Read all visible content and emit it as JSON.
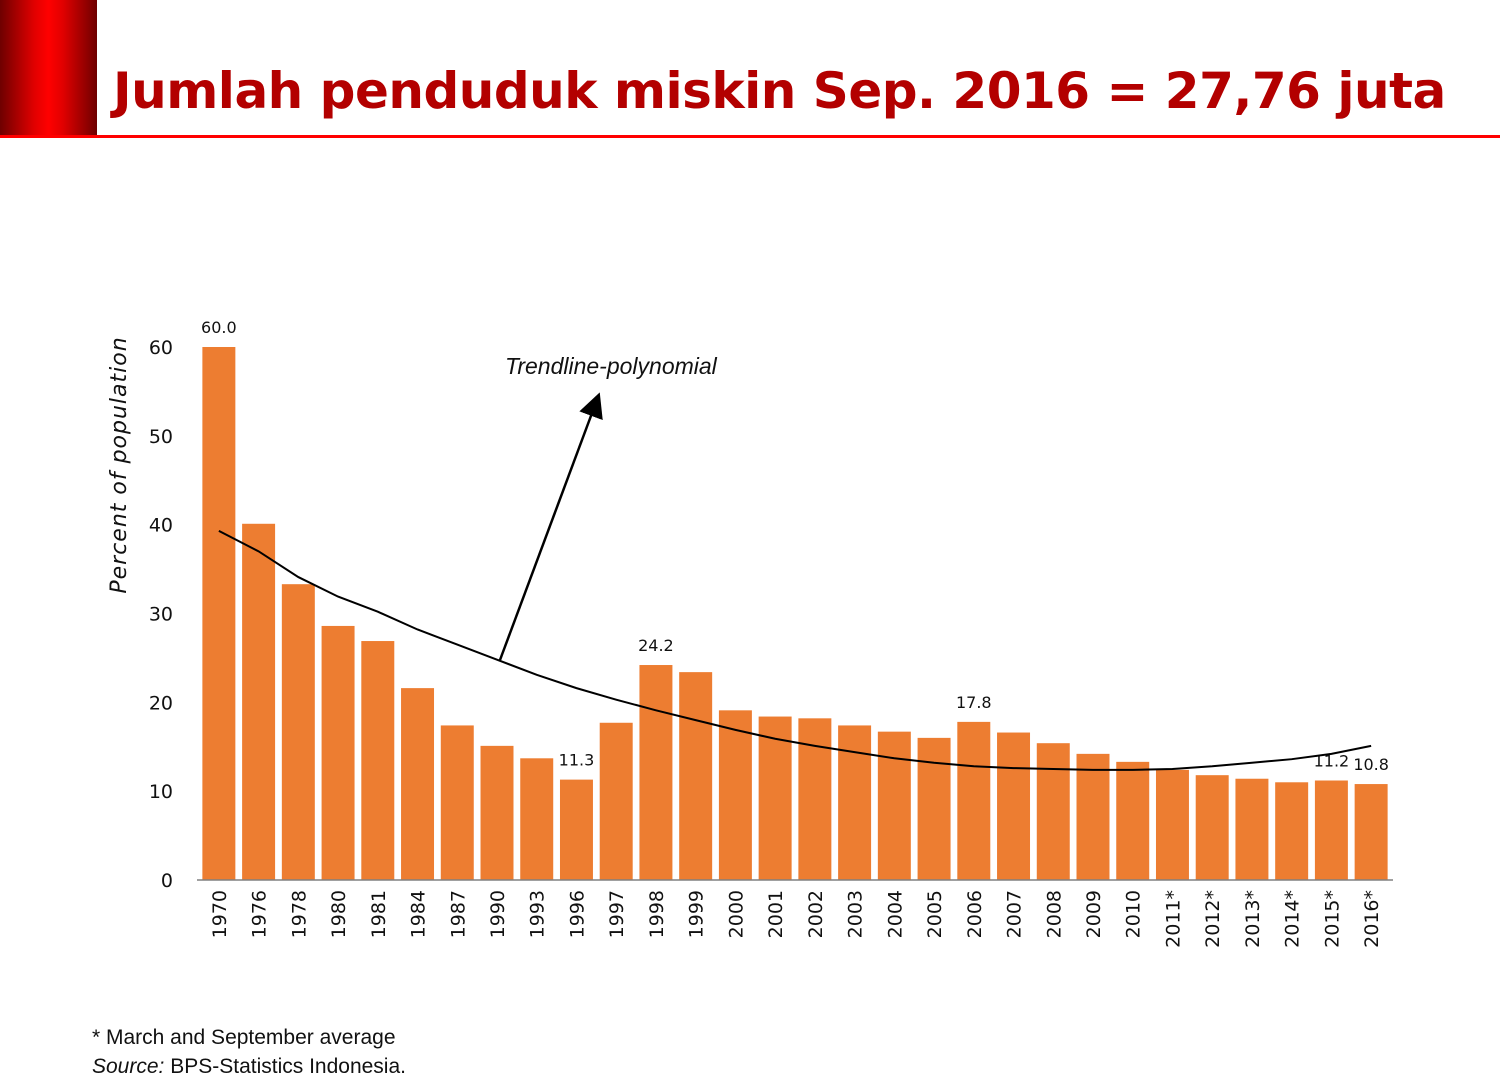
{
  "header": {
    "title": "Jumlah penduduk miskin Sep. 2016 = 27,76 juta"
  },
  "colors": {
    "bar": "#ed7d31",
    "trend": "#000000",
    "title": "#b30000",
    "accent": "#ff0000"
  },
  "chart_data": {
    "type": "bar",
    "title": "",
    "xlabel": "",
    "ylabel": "Percent of population",
    "ylim": [
      0,
      60
    ],
    "yticks": [
      0,
      10,
      20,
      30,
      40,
      50,
      60
    ],
    "grid": false,
    "categories": [
      "1970",
      "1976",
      "1978",
      "1980",
      "1981",
      "1984",
      "1987",
      "1990",
      "1993",
      "1996",
      "1997",
      "1998",
      "1999",
      "2000",
      "2001",
      "2002",
      "2003",
      "2004",
      "2005",
      "2006",
      "2007",
      "2008",
      "2009",
      "2010",
      "2011*",
      "2012*",
      "2013*",
      "2014*",
      "2015*",
      "2016*"
    ],
    "values": [
      60.0,
      40.1,
      33.3,
      28.6,
      26.9,
      21.6,
      17.4,
      15.1,
      13.7,
      11.3,
      17.7,
      24.2,
      23.4,
      19.1,
      18.4,
      18.2,
      17.4,
      16.7,
      16.0,
      17.8,
      16.6,
      15.4,
      14.2,
      13.3,
      12.4,
      11.8,
      11.4,
      11.0,
      11.2,
      10.8
    ],
    "data_labels": {
      "1970": "60.0",
      "1996": "11.3",
      "1998": "24.2",
      "2006": "17.8",
      "2015*": "11.2",
      "2016*": "10.8"
    },
    "trendline": {
      "type": "polynomial",
      "values": [
        39.3,
        37.0,
        34.1,
        31.9,
        30.2,
        28.2,
        26.5,
        24.8,
        23.1,
        21.6,
        20.3,
        19.1,
        18.0,
        16.9,
        15.9,
        15.1,
        14.4,
        13.7,
        13.2,
        12.8,
        12.6,
        12.5,
        12.4,
        12.4,
        12.5,
        12.8,
        13.2,
        13.6,
        14.2,
        15.1
      ]
    },
    "annotation": {
      "text": "Trendline-polynomial"
    }
  },
  "footer": {
    "note": "* March and September average",
    "source_label": "Source:",
    "source_text": " BPS-Statistics Indonesia."
  }
}
